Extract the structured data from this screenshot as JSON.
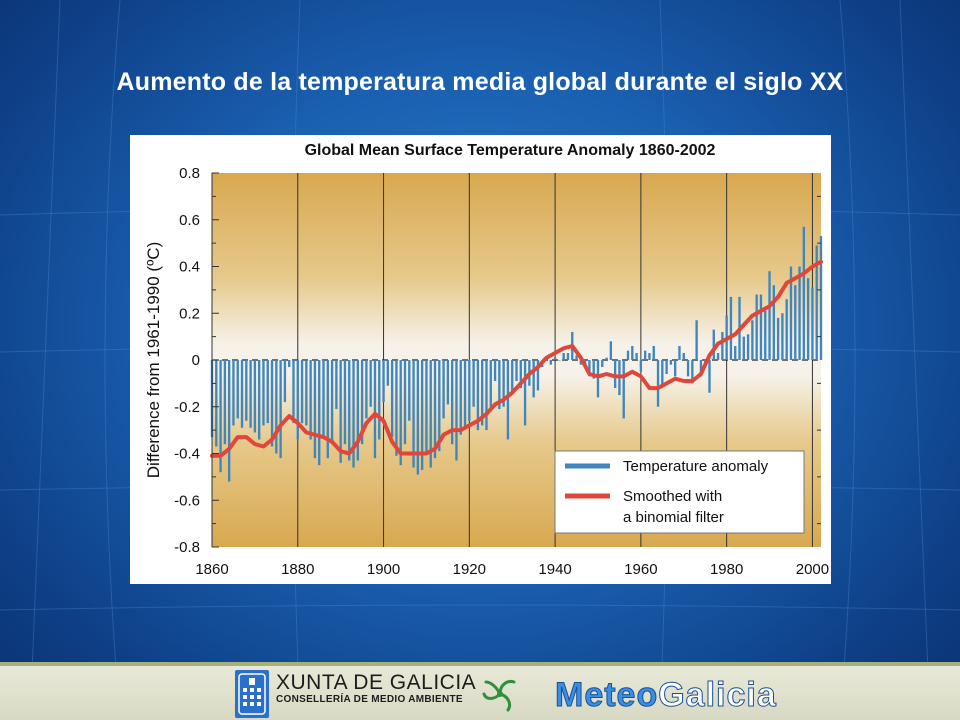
{
  "slide": {
    "title": "Aumento de la temperatura media global durante el siglo XX"
  },
  "footer": {
    "org_name": "XUNTA DE GALICIA",
    "org_dept": "CONSELLERÍA DE MEDIO AMBIENTE",
    "logo_part1": "Meteo",
    "logo_part2": "Galicia",
    "icons": [
      "xunta-shield-icon",
      "meteogalicia-swirl-icon"
    ]
  },
  "colors": {
    "bar": "#3f86bf",
    "smooth": "#e0473b",
    "plot_bg_top": "#d9aa52",
    "plot_bg_mid": "#f5f3ec",
    "legend_bg": "#ffffff"
  },
  "chart_data": {
    "type": "bar",
    "title": "Global Mean Surface Temperature Anomaly 1860-2002",
    "xlabel": "",
    "ylabel": "Difference from 1961-1990 (ºC)",
    "xlim": [
      1860,
      2002
    ],
    "ylim": [
      -0.8,
      0.8
    ],
    "x_ticks": [
      "1860",
      "1880",
      "1900",
      "1920",
      "1940",
      "1960",
      "1980",
      "2000"
    ],
    "y_ticks": [
      "0.8",
      "0.6",
      "0.4",
      "0.2",
      "0",
      "-0.2",
      "-0.4",
      "-0.6",
      "-0.8"
    ],
    "grid": "vertical lines at each 20 years",
    "legend_position": "bottom-right",
    "series": [
      {
        "name": "Temperature anomaly",
        "kind": "bar",
        "x": [
          1860,
          1861,
          1862,
          1863,
          1864,
          1865,
          1866,
          1867,
          1868,
          1869,
          1870,
          1871,
          1872,
          1873,
          1874,
          1875,
          1876,
          1877,
          1878,
          1879,
          1880,
          1881,
          1882,
          1883,
          1884,
          1885,
          1886,
          1887,
          1888,
          1889,
          1890,
          1891,
          1892,
          1893,
          1894,
          1895,
          1896,
          1897,
          1898,
          1899,
          1900,
          1901,
          1902,
          1903,
          1904,
          1905,
          1906,
          1907,
          1908,
          1909,
          1910,
          1911,
          1912,
          1913,
          1914,
          1915,
          1916,
          1917,
          1918,
          1919,
          1920,
          1921,
          1922,
          1923,
          1924,
          1925,
          1926,
          1927,
          1928,
          1929,
          1930,
          1931,
          1932,
          1933,
          1934,
          1935,
          1936,
          1937,
          1938,
          1939,
          1940,
          1941,
          1942,
          1943,
          1944,
          1945,
          1946,
          1947,
          1948,
          1949,
          1950,
          1951,
          1952,
          1953,
          1954,
          1955,
          1956,
          1957,
          1958,
          1959,
          1960,
          1961,
          1962,
          1963,
          1964,
          1965,
          1966,
          1967,
          1968,
          1969,
          1970,
          1971,
          1972,
          1973,
          1974,
          1975,
          1976,
          1977,
          1978,
          1979,
          1980,
          1981,
          1982,
          1983,
          1984,
          1985,
          1986,
          1987,
          1988,
          1989,
          1990,
          1991,
          1992,
          1993,
          1994,
          1995,
          1996,
          1997,
          1998,
          1999,
          2000,
          2001,
          2002
        ],
        "values": [
          -0.33,
          -0.37,
          -0.48,
          -0.36,
          -0.52,
          -0.28,
          -0.25,
          -0.29,
          -0.26,
          -0.29,
          -0.31,
          -0.34,
          -0.28,
          -0.27,
          -0.37,
          -0.4,
          -0.42,
          -0.18,
          -0.03,
          -0.27,
          -0.34,
          -0.27,
          -0.28,
          -0.34,
          -0.42,
          -0.45,
          -0.33,
          -0.42,
          -0.36,
          -0.21,
          -0.44,
          -0.36,
          -0.43,
          -0.46,
          -0.43,
          -0.36,
          -0.25,
          -0.2,
          -0.42,
          -0.34,
          -0.18,
          -0.11,
          -0.33,
          -0.41,
          -0.45,
          -0.36,
          -0.26,
          -0.46,
          -0.49,
          -0.47,
          -0.4,
          -0.46,
          -0.42,
          -0.39,
          -0.25,
          -0.19,
          -0.36,
          -0.43,
          -0.32,
          -0.29,
          -0.26,
          -0.2,
          -0.3,
          -0.28,
          -0.3,
          -0.22,
          -0.09,
          -0.21,
          -0.2,
          -0.34,
          -0.14,
          -0.09,
          -0.12,
          -0.28,
          -0.11,
          -0.16,
          -0.13,
          -0.03,
          0.01,
          -0.02,
          0.01,
          0.0,
          0.03,
          0.03,
          0.12,
          0.02,
          -0.02,
          -0.03,
          -0.07,
          -0.08,
          -0.16,
          -0.03,
          0.01,
          0.08,
          -0.12,
          -0.15,
          -0.25,
          0.04,
          0.06,
          0.03,
          -0.05,
          0.04,
          0.03,
          0.06,
          -0.2,
          -0.11,
          -0.06,
          -0.02,
          -0.07,
          0.06,
          0.03,
          -0.07,
          -0.1,
          0.17,
          -0.07,
          -0.01,
          -0.14,
          0.13,
          0.03,
          0.12,
          0.19,
          0.27,
          0.06,
          0.27,
          0.1,
          0.11,
          0.17,
          0.28,
          0.28,
          0.21,
          0.38,
          0.32,
          0.18,
          0.2,
          0.26,
          0.4,
          0.32,
          0.4,
          0.57,
          0.35,
          0.31,
          0.49,
          0.53
        ]
      },
      {
        "name": "Smoothed with a binomial filter",
        "kind": "line",
        "x": [
          1860,
          1862,
          1864,
          1866,
          1868,
          1870,
          1872,
          1874,
          1876,
          1878,
          1880,
          1882,
          1884,
          1886,
          1888,
          1890,
          1892,
          1894,
          1896,
          1898,
          1900,
          1902,
          1904,
          1906,
          1908,
          1910,
          1912,
          1914,
          1916,
          1918,
          1920,
          1922,
          1924,
          1926,
          1928,
          1930,
          1932,
          1934,
          1936,
          1938,
          1940,
          1942,
          1944,
          1946,
          1948,
          1950,
          1952,
          1954,
          1956,
          1958,
          1960,
          1962,
          1964,
          1966,
          1968,
          1970,
          1972,
          1974,
          1976,
          1978,
          1980,
          1982,
          1984,
          1986,
          1988,
          1990,
          1992,
          1994,
          1996,
          1998,
          2000,
          2002
        ],
        "values": [
          -0.41,
          -0.41,
          -0.38,
          -0.33,
          -0.33,
          -0.36,
          -0.37,
          -0.34,
          -0.28,
          -0.24,
          -0.27,
          -0.31,
          -0.32,
          -0.33,
          -0.35,
          -0.39,
          -0.4,
          -0.35,
          -0.27,
          -0.23,
          -0.26,
          -0.35,
          -0.4,
          -0.4,
          -0.4,
          -0.4,
          -0.38,
          -0.32,
          -0.3,
          -0.3,
          -0.28,
          -0.26,
          -0.23,
          -0.19,
          -0.17,
          -0.14,
          -0.1,
          -0.06,
          -0.03,
          0.01,
          0.03,
          0.05,
          0.06,
          0.01,
          -0.06,
          -0.07,
          -0.06,
          -0.07,
          -0.07,
          -0.05,
          -0.07,
          -0.12,
          -0.12,
          -0.1,
          -0.08,
          -0.09,
          -0.09,
          -0.06,
          0.02,
          0.07,
          0.09,
          0.11,
          0.15,
          0.19,
          0.21,
          0.23,
          0.27,
          0.33,
          0.35,
          0.37,
          0.4,
          0.42
        ]
      }
    ],
    "legend": [
      {
        "label_lines": [
          "Temperature anomaly"
        ],
        "kind": "bar"
      },
      {
        "label_lines": [
          "Smoothed with",
          "a binomial filter"
        ],
        "kind": "line"
      }
    ]
  }
}
